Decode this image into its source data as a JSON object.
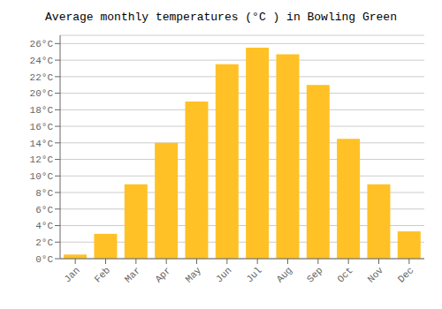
{
  "chart_data": {
    "type": "bar",
    "title": "Average monthly temperatures (°C ) in Bowling Green",
    "categories": [
      "Jan",
      "Feb",
      "Mar",
      "Apr",
      "May",
      "Jun",
      "Jul",
      "Aug",
      "Sep",
      "Oct",
      "Nov",
      "Dec"
    ],
    "values": [
      0.5,
      3.0,
      9.0,
      14.0,
      19.0,
      23.5,
      25.5,
      24.7,
      21.0,
      14.5,
      9.0,
      3.3
    ],
    "color": "#FFC125",
    "ylim": [
      0,
      27
    ],
    "yticks": [
      {
        "value": 0,
        "label": "0°C"
      },
      {
        "value": 2,
        "label": "2°C"
      },
      {
        "value": 4,
        "label": "4°C"
      },
      {
        "value": 6,
        "label": "6°C"
      },
      {
        "value": 8,
        "label": "8°C"
      },
      {
        "value": 10,
        "label": "10°C"
      },
      {
        "value": 12,
        "label": "12°C"
      },
      {
        "value": 14,
        "label": "14°C"
      },
      {
        "value": 16,
        "label": "16°C"
      },
      {
        "value": 18,
        "label": "18°C"
      },
      {
        "value": 20,
        "label": "20°C"
      },
      {
        "value": 22,
        "label": "22°C"
      },
      {
        "value": 24,
        "label": "24°C"
      },
      {
        "value": 26,
        "label": "26°C"
      }
    ],
    "grid": true
  }
}
